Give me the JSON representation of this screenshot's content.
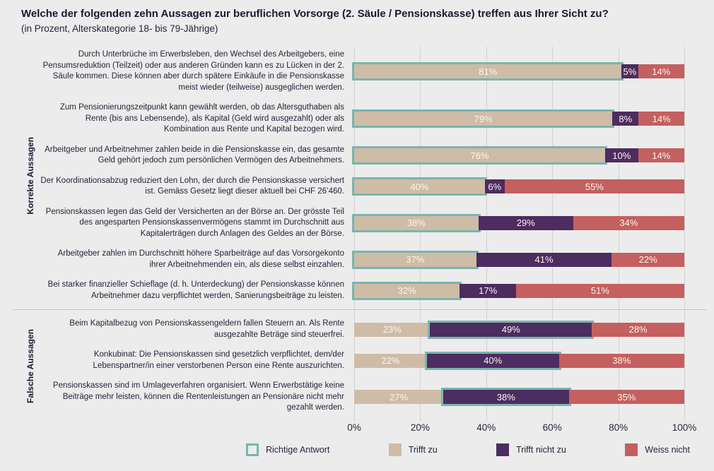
{
  "title": "Welche der folgenden zehn Aussagen zur beruflichen Vorsorge (2. Säule / Pensionskasse) treffen aus Ihrer Sicht zu?",
  "subtitle": "(in Prozent, Alterskategorie 18- bis 79-Jährige)",
  "colors": {
    "trifft_zu": "#cfbca7",
    "trifft_nicht_zu": "#4d2c60",
    "weiss_nicht": "#c4605f",
    "richtige_antwort_outline": "#79b5ae",
    "background": "#ececec",
    "gridline": "#d2d2d2",
    "text": "#26263a"
  },
  "chart_data": {
    "type": "bar",
    "orientation": "horizontal",
    "stacked": true,
    "unit": "percent",
    "xlim": [
      0,
      100
    ],
    "x_ticks": [
      "0%",
      "20%",
      "40%",
      "60%",
      "80%",
      "100%"
    ],
    "grid": true,
    "legend_position": "bottom",
    "series_names": [
      "Trifft zu",
      "Trifft nicht zu",
      "Weiss nicht"
    ],
    "groups": [
      {
        "label": "Korrekte Aussagen",
        "rows": [
          {
            "label": "Durch Unterbrüche im Erwerbsleben, den Wechsel des Arbeitgebers, eine Pensumsreduktion (Teilzeit) oder aus anderen Gründen kann es zu Lücken in der 2. Säule kommen. Diese können aber durch spätere Einkäufe in die Pensionskasse meist wieder (teilweise) ausgeglichen werden.",
            "values": [
              81,
              5,
              14
            ],
            "display": [
              "81%",
              "5%",
              "14%"
            ],
            "correct_segment": 0
          },
          {
            "label": "Zum Pensionierungszeitpunkt kann gewählt werden, ob das Altersguthaben als Rente (bis ans Lebensende), als Kapital (Geld wird ausgezahlt) oder als Kombination aus Rente und Kapital bezogen wird.",
            "values": [
              79,
              8,
              14
            ],
            "display": [
              "79%",
              "8%",
              "14%"
            ],
            "correct_segment": 0
          },
          {
            "label": "Arbeitgeber und Arbeitnehmer zahlen beide in die Pensionskasse ein, das gesamte Geld gehört jedoch zum persönlichen Vermögen des Arbeitnehmers.",
            "values": [
              76,
              10,
              14
            ],
            "display": [
              "76%",
              "10%",
              "14%"
            ],
            "correct_segment": 0
          },
          {
            "label": "Der Koordinationsabzug reduziert den Lohn, der durch die Pensionskasse versichert ist. Gemäss Gesetz liegt dieser aktuell bei CHF 26’460.",
            "values": [
              40,
              6,
              55
            ],
            "display": [
              "40%",
              "6%",
              "55%"
            ],
            "correct_segment": 0
          },
          {
            "label": "Pensionskassen legen das Geld der Versicherten an der Börse an. Der grösste Teil des angesparten Pensionskassenvermögens stammt im Durchschnitt aus Kapitalerträgen durch Anlagen des Geldes an der Börse.",
            "values": [
              38,
              29,
              34
            ],
            "display": [
              "38%",
              "29%",
              "34%"
            ],
            "correct_segment": 0
          },
          {
            "label": "Arbeitgeber zahlen im Durchschnitt höhere Sparbeiträge auf das Vorsorgekonto ihrer Arbeitnehmenden ein, als diese selbst einzahlen.",
            "values": [
              37,
              41,
              22
            ],
            "display": [
              "37%",
              "41%",
              "22%"
            ],
            "correct_segment": 0
          },
          {
            "label": "Bei starker finanzieller Schieflage (d. h. Unterdeckung) der Pensionskasse können Arbeitnehmer dazu verpflichtet werden, Sanierungsbeiträge zu leisten.",
            "values": [
              32,
              17,
              51
            ],
            "display": [
              "32%",
              "17%",
              "51%"
            ],
            "correct_segment": 0
          }
        ]
      },
      {
        "label": "Falsche Aussagen",
        "rows": [
          {
            "label": "Beim Kapitalbezug von Pensionskassengeldern fallen Steuern an. Als Rente ausgezahlte Beträge sind steuerfrei.",
            "values": [
              23,
              49,
              28
            ],
            "display": [
              "23%",
              "49%",
              "28%"
            ],
            "correct_segment": 1
          },
          {
            "label": "Konkubinat: Die Pensionskassen sind gesetzlich verpflichtet, dem/der Lebenspartner/in einer verstorbenen Person eine Rente auszurichten.",
            "values": [
              22,
              40,
              38
            ],
            "display": [
              "22%",
              "40%",
              "38%"
            ],
            "correct_segment": 1
          },
          {
            "label": "Pensionskassen sind im Umlageverfahren organisiert. Wenn Erwerbstätige keine Beiträge mehr leisten, können die Rentenleistungen an Pensionäre nicht mehr gezahlt werden.",
            "values": [
              27,
              38,
              35
            ],
            "display": [
              "27%",
              "38%",
              "35%"
            ],
            "correct_segment": 1
          }
        ]
      }
    ],
    "legend": [
      {
        "label": "Richtige Antwort",
        "swatch": "outline"
      },
      {
        "label": "Trifft zu",
        "swatch": "tan"
      },
      {
        "label": "Trifft nicht zu",
        "swatch": "purple"
      },
      {
        "label": "Weiss nicht",
        "swatch": "red"
      }
    ]
  }
}
